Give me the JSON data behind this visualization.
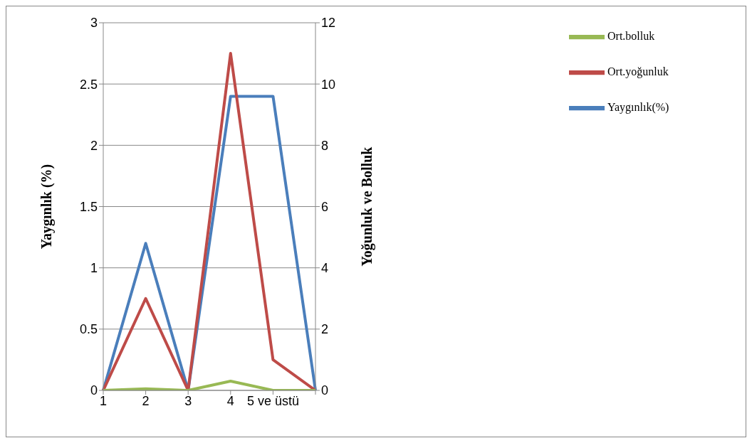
{
  "chart_data": {
    "type": "line",
    "categories": [
      "1",
      "2",
      "3",
      "4",
      "5 ve üstü",
      null
    ],
    "ylabel": "Yaygınlık (%)",
    "y2label": "Yoğunluk ve  Bolluk",
    "ylim": [
      0,
      3
    ],
    "yticks": [
      0,
      0.5,
      1,
      1.5,
      2,
      2.5,
      3
    ],
    "y2lim": [
      0,
      12
    ],
    "y2ticks": [
      0,
      2,
      4,
      6,
      8,
      10,
      12
    ],
    "grid": "y",
    "legend": "top right",
    "marker": "none",
    "line_style": "solid",
    "series": [
      {
        "name": "Yaygınlık(%)",
        "color": "#4a7ebb",
        "values": [
          0,
          1.2,
          0,
          2.4,
          2.4,
          0
        ]
      },
      {
        "name": "Ort.yoğunluk",
        "color": "#be4b48",
        "values": [
          0,
          3,
          0,
          11,
          1,
          0
        ],
        "axis": "y2"
      },
      {
        "name": "Ort.bolluk",
        "color": "#98b954",
        "values": [
          0,
          0.05,
          0,
          0.3,
          0,
          0
        ],
        "axis": "y2"
      }
    ]
  }
}
